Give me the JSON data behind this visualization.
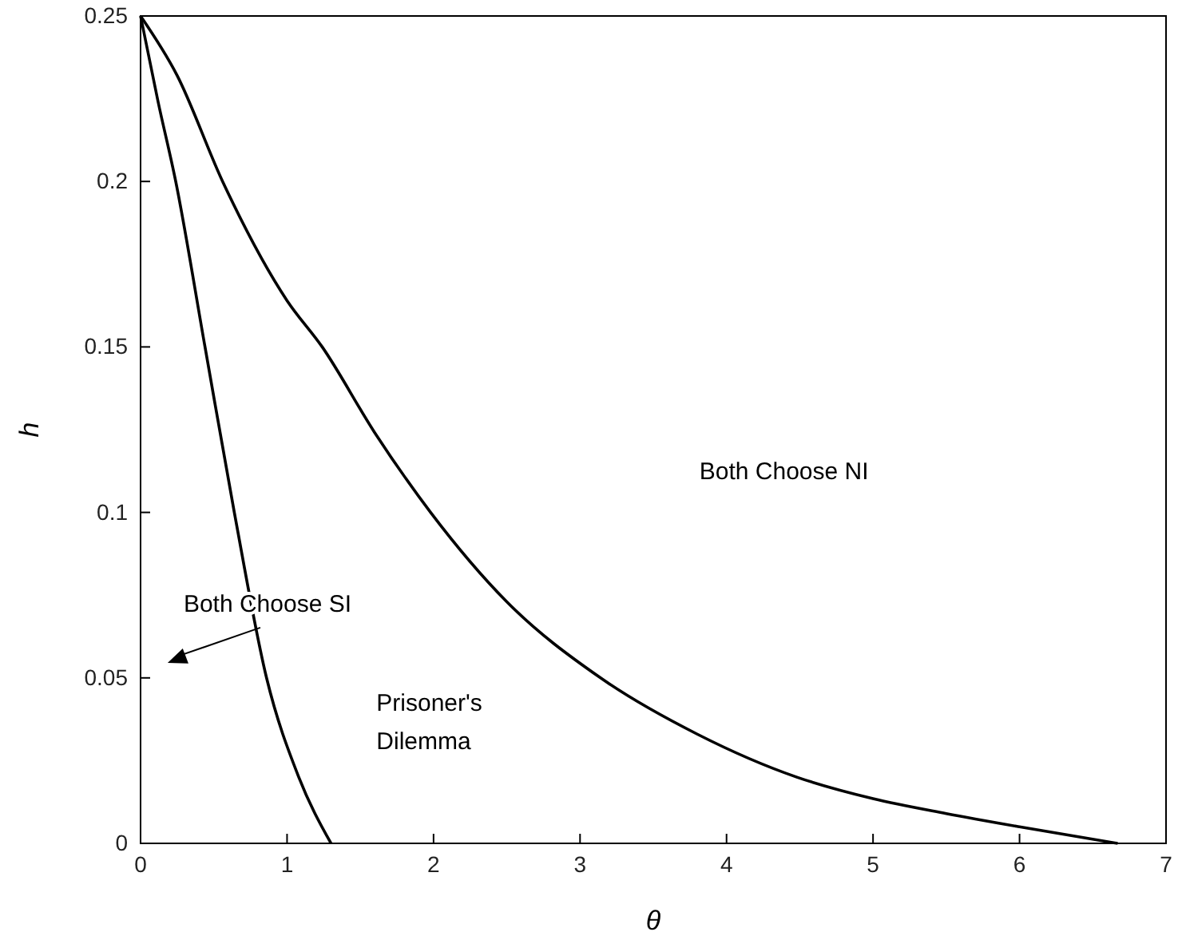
{
  "chart_data": {
    "type": "line",
    "xlabel": "θ",
    "ylabel": "h",
    "xlim": [
      0,
      7
    ],
    "ylim": [
      0,
      0.25
    ],
    "xticks": [
      0,
      1,
      2,
      3,
      4,
      5,
      6,
      7
    ],
    "yticks": [
      0,
      0.05,
      0.1,
      0.15,
      0.2,
      0.25
    ],
    "grid": false,
    "marker": "none",
    "line_style": "solid",
    "series": [
      {
        "color": "#000000",
        "x": [
          0,
          0.12,
          0.24,
          0.44,
          0.64,
          0.86,
          1.08,
          1.3
        ],
        "values": [
          0.25,
          0.224,
          0.2,
          0.15,
          0.1,
          0.05,
          0.02,
          0
        ]
      },
      {
        "color": "#000000",
        "x": [
          0,
          0.25,
          0.56,
          1,
          1.24,
          1.6,
          1.98,
          2.5,
          3.14,
          3.8,
          4.48,
          5,
          5.5,
          6,
          6.67
        ],
        "values": [
          0.25,
          0.232,
          0.2,
          0.164,
          0.15,
          0.124,
          0.1,
          0.073,
          0.05,
          0.033,
          0.02,
          0.0135,
          0.009,
          0.005,
          0
        ]
      }
    ],
    "annotations": [
      "Both Choose NI",
      "Both Choose SI",
      "Prisoner's Dilemma"
    ]
  }
}
